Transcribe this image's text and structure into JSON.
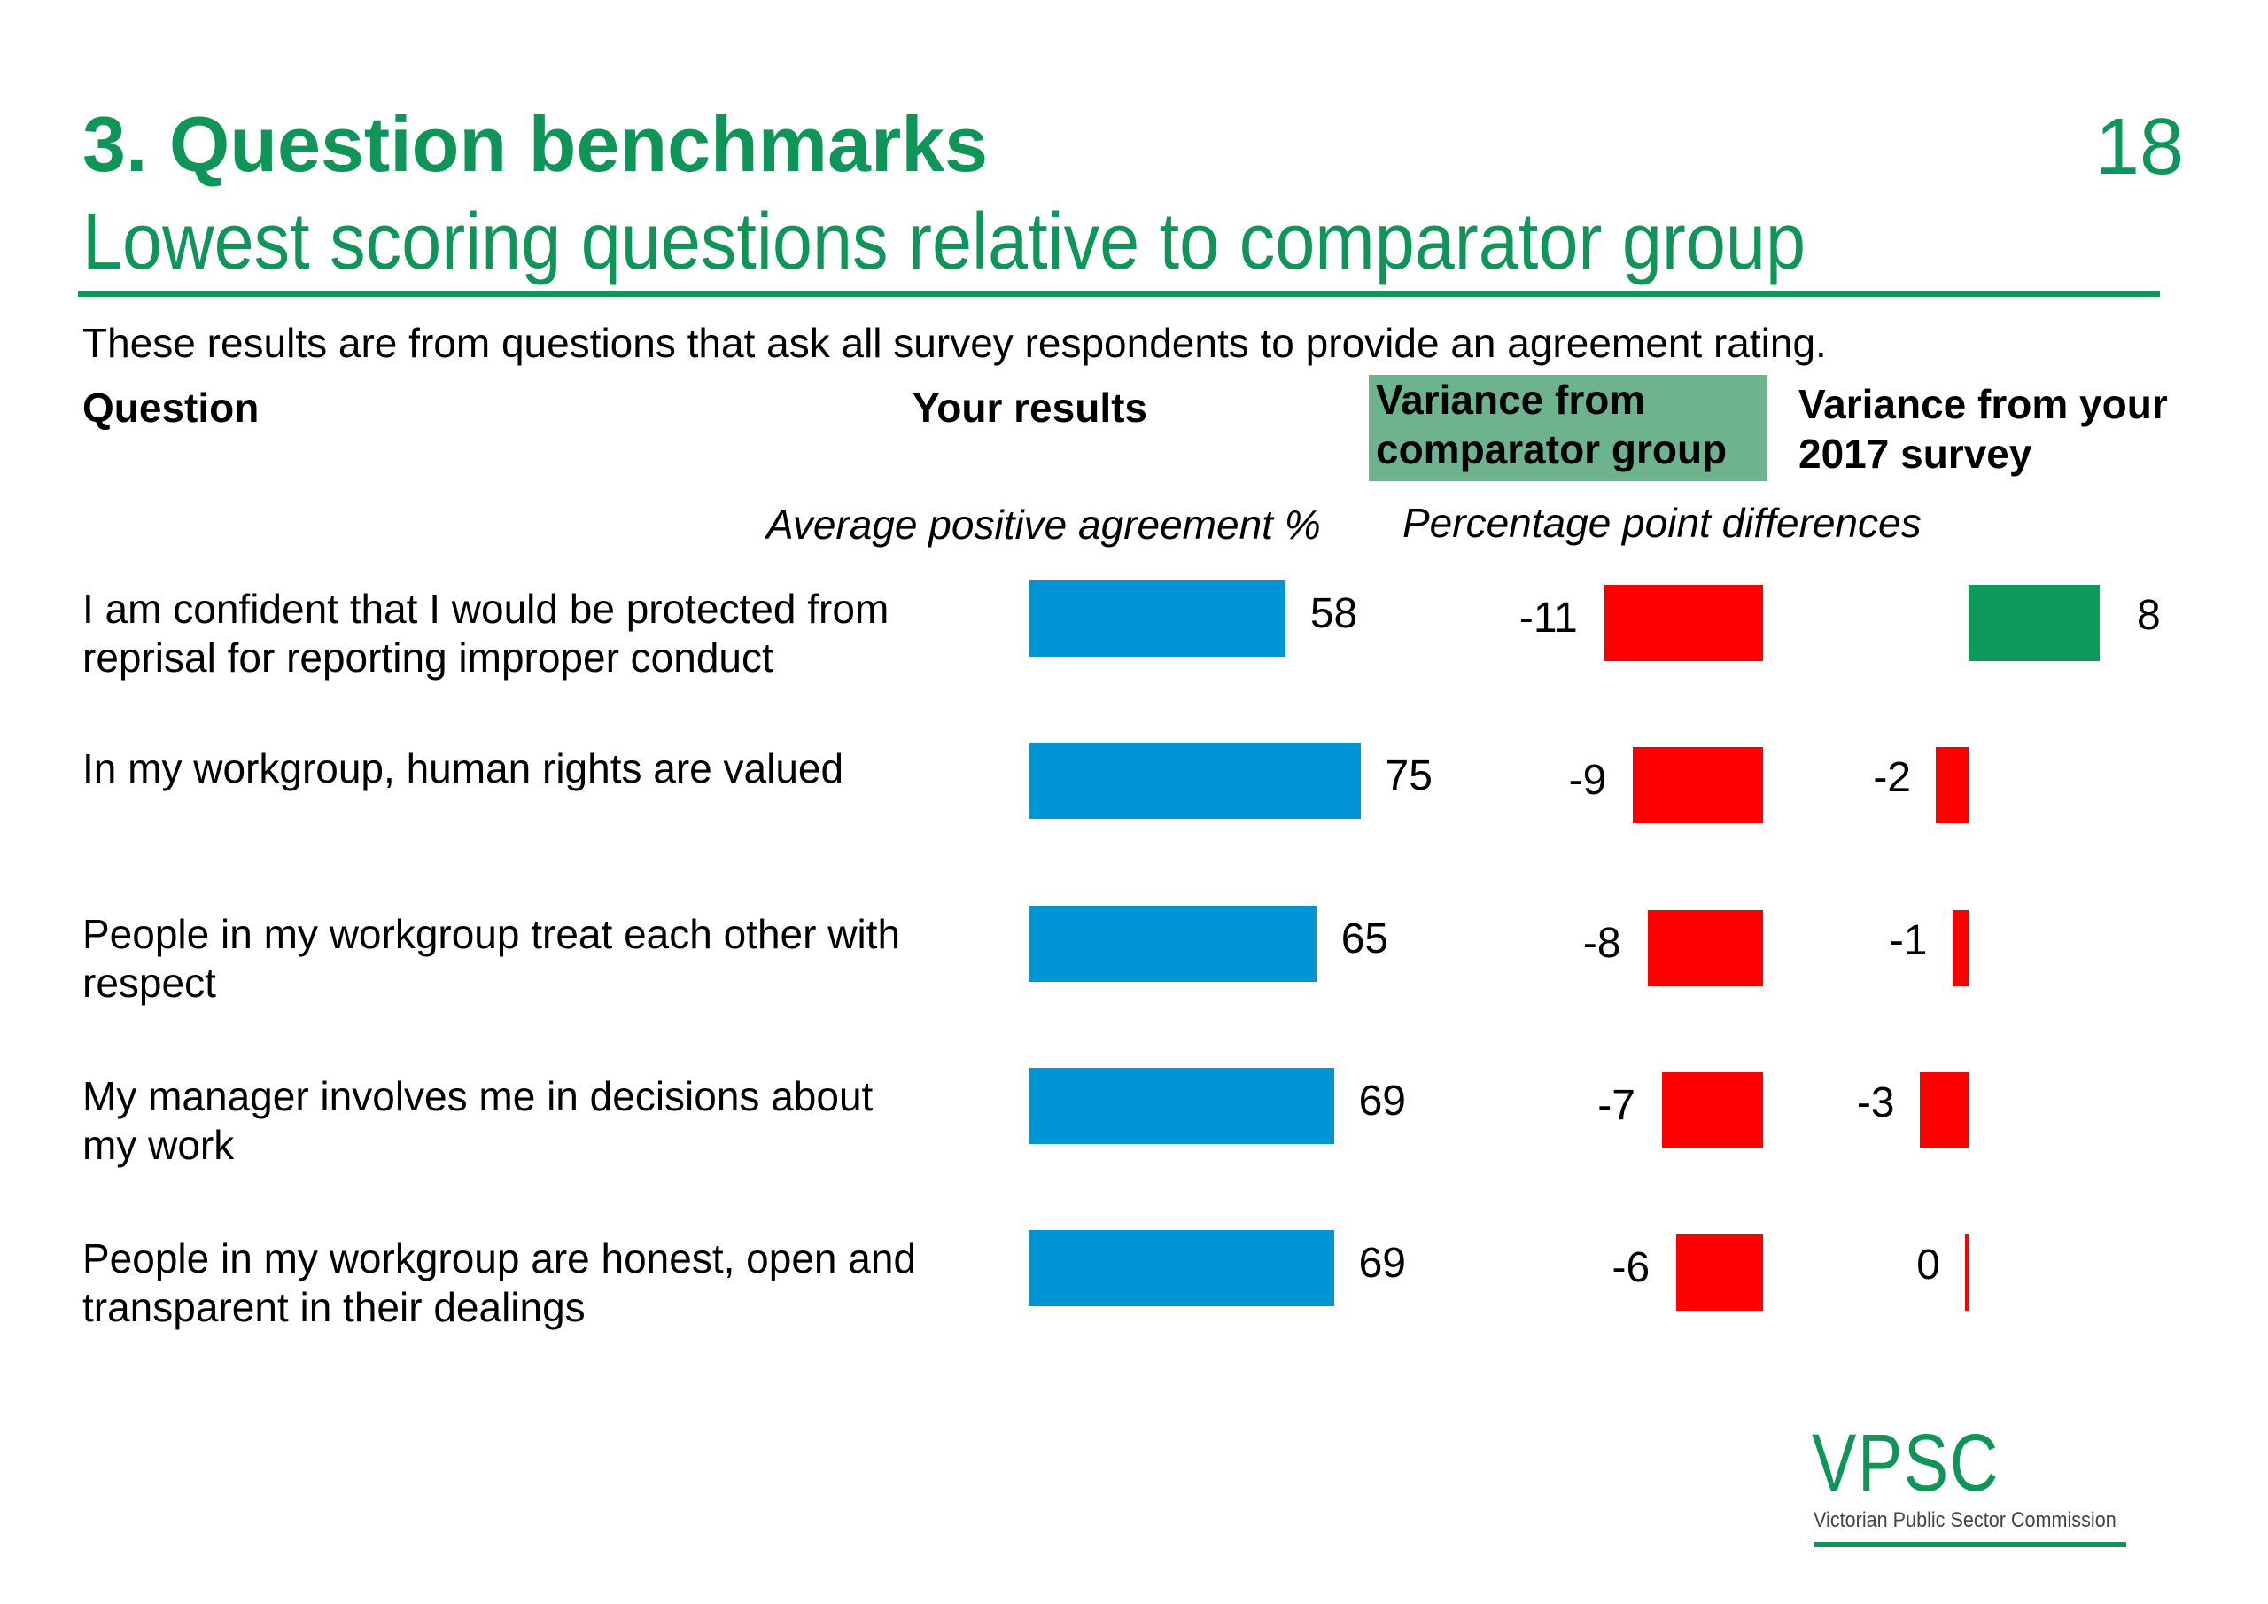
{
  "header": {
    "title": "3. Question benchmarks",
    "subtitle": "Lowest scoring questions relative to comparator group",
    "page_number": "18"
  },
  "intro": "These results are from questions that ask all survey respondents to provide an agreement rating.",
  "columns": {
    "question": "Question",
    "your_results": "Your results",
    "comparator_line1": "Variance from",
    "comparator_line2": "comparator group",
    "prev_line1": "Variance from your",
    "prev_line2": "2017 survey"
  },
  "subheads": {
    "results": "Average positive agreement %",
    "differences": "Percentage point differences"
  },
  "colors": {
    "brand_green": "#0f9557",
    "results_bar": "#0096d6",
    "negative": "#ff0000",
    "positive": "#0d9a5b",
    "header_highlight": "#6db38e"
  },
  "chart_data": {
    "type": "bar",
    "categories": [
      [
        "I am confident that I would be protected from",
        "reprisal for reporting improper conduct"
      ],
      [
        "In my workgroup, human rights are valued"
      ],
      [
        "People in my workgroup treat each other with",
        "respect"
      ],
      [
        "My manager involves me in decisions about",
        "my work"
      ],
      [
        "People in my workgroup are honest, open and",
        "transparent in their dealings"
      ]
    ],
    "series": [
      {
        "name": "Your results",
        "values": [
          58,
          75,
          65,
          69,
          69
        ]
      },
      {
        "name": "Variance from comparator group",
        "values": [
          -11,
          -9,
          -8,
          -7,
          -6
        ]
      },
      {
        "name": "Variance from your 2017 survey",
        "values": [
          8,
          -2,
          -1,
          -3,
          0
        ]
      }
    ]
  },
  "logo": {
    "text": "VPSC",
    "subtitle": "Victorian Public Sector Commission"
  }
}
